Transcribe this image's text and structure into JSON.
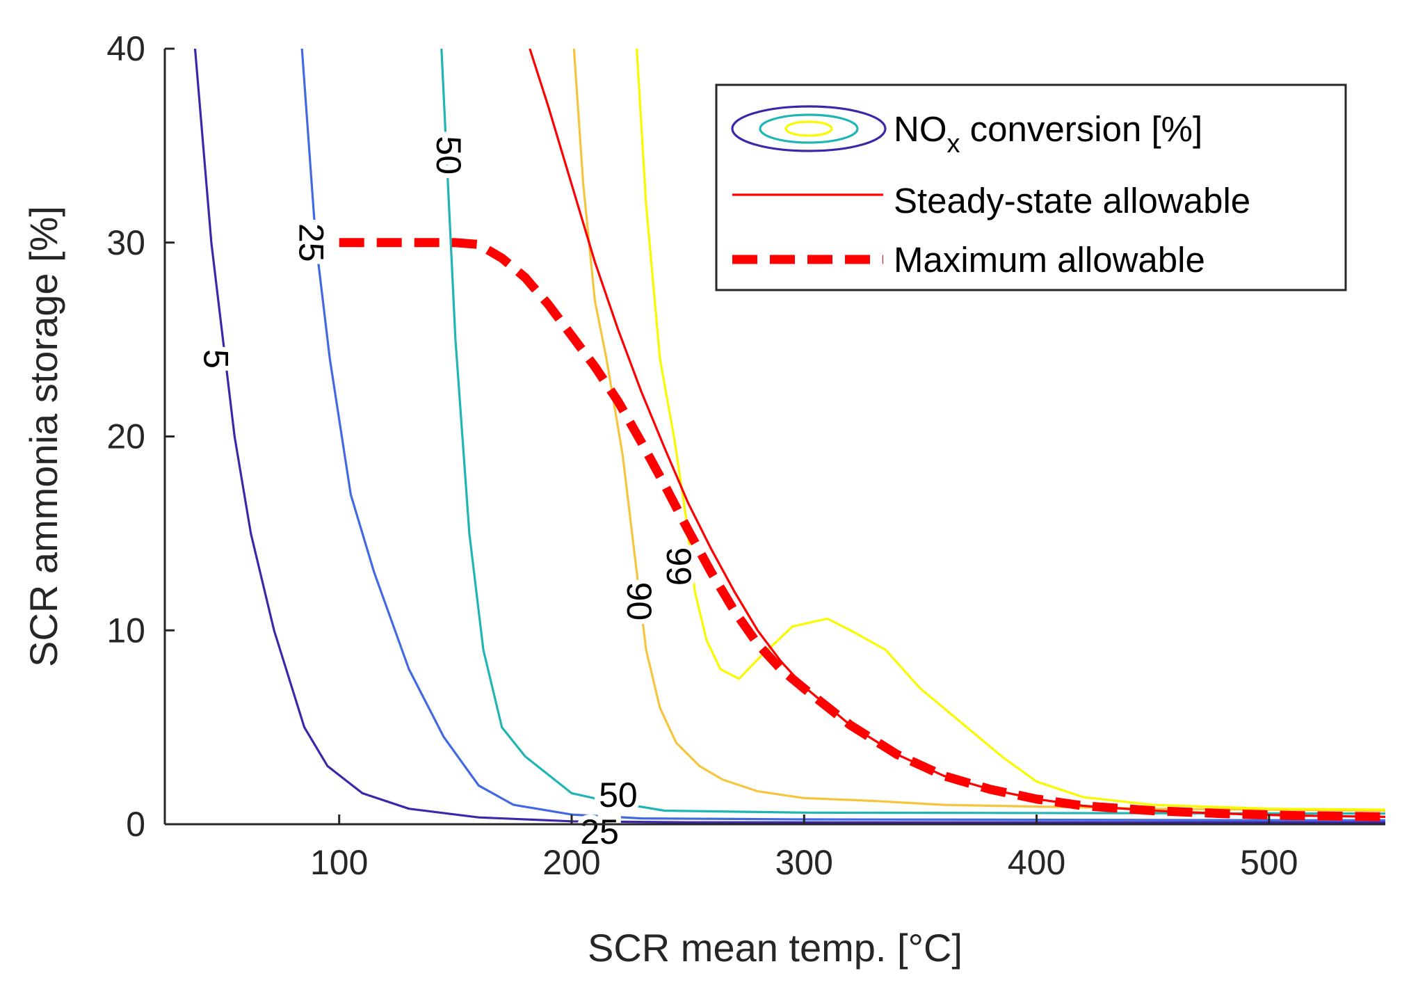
{
  "chart_data": {
    "type": "line",
    "xlabel": "SCR mean temp. [°C]",
    "ylabel": "SCR ammonia storage [%]",
    "xlim": [
      25,
      550
    ],
    "ylim": [
      0,
      40
    ],
    "x_ticks": [
      100,
      200,
      300,
      400,
      500
    ],
    "y_ticks": [
      0,
      10,
      20,
      30,
      40
    ],
    "grid": false,
    "legend_position": "top-right",
    "legend": [
      {
        "label": "NO",
        "sub": "x",
        "suffix": " conversion [%]",
        "kind": "contour-swatch"
      },
      {
        "label": "Steady-state allowable",
        "kind": "thin-line",
        "color": "#ff0000"
      },
      {
        "label": "Maximum allowable",
        "kind": "thick-dashed",
        "color": "#ff0000"
      }
    ],
    "contours": [
      {
        "level": 5,
        "color": "#3d26a8",
        "points": [
          [
            38,
            40
          ],
          [
            45,
            30
          ],
          [
            55,
            20
          ],
          [
            62,
            15
          ],
          [
            72,
            10
          ],
          [
            85,
            5
          ],
          [
            95,
            3
          ],
          [
            110,
            1.6
          ],
          [
            130,
            0.8
          ],
          [
            160,
            0.35
          ],
          [
            200,
            0.15
          ],
          [
            250,
            0.1
          ],
          [
            550,
            0.1
          ]
        ],
        "labels": [
          {
            "text": "5",
            "x": 47,
            "y": 24,
            "rotate": 90
          }
        ]
      },
      {
        "level": 25,
        "color": "#4169e1",
        "points": [
          [
            84,
            40
          ],
          [
            90,
            30
          ],
          [
            96,
            24
          ],
          [
            105,
            17
          ],
          [
            115,
            13
          ],
          [
            130,
            8
          ],
          [
            145,
            4.5
          ],
          [
            160,
            2
          ],
          [
            175,
            1
          ],
          [
            200,
            0.5
          ],
          [
            230,
            0.3
          ],
          [
            300,
            0.25
          ],
          [
            550,
            0.2
          ]
        ],
        "labels": [
          {
            "text": "25",
            "x": 88,
            "y": 30,
            "rotate": 90
          },
          {
            "text": "25",
            "x": 212,
            "y": -0.4,
            "rotate": 0
          }
        ]
      },
      {
        "level": 50,
        "color": "#1fb5b5",
        "points": [
          [
            144,
            40
          ],
          [
            146,
            35
          ],
          [
            148,
            30
          ],
          [
            150,
            25
          ],
          [
            153,
            20
          ],
          [
            156,
            15
          ],
          [
            162,
            9
          ],
          [
            170,
            5
          ],
          [
            180,
            3.5
          ],
          [
            200,
            1.6
          ],
          [
            215,
            1.2
          ],
          [
            240,
            0.7
          ],
          [
            300,
            0.6
          ],
          [
            550,
            0.55
          ]
        ],
        "labels": [
          {
            "text": "50",
            "x": 147,
            "y": 34.5,
            "rotate": 90
          },
          {
            "text": "50",
            "x": 220,
            "y": 1.5,
            "rotate": 0
          }
        ]
      },
      {
        "level": 90,
        "color": "#f7c53d",
        "points": [
          [
            201,
            40
          ],
          [
            205,
            33
          ],
          [
            210,
            27
          ],
          [
            215,
            24
          ],
          [
            222,
            19
          ],
          [
            228,
            13
          ],
          [
            232,
            9
          ],
          [
            238,
            6
          ],
          [
            245,
            4.2
          ],
          [
            255,
            3
          ],
          [
            265,
            2.3
          ],
          [
            280,
            1.7
          ],
          [
            300,
            1.35
          ],
          [
            330,
            1.2
          ],
          [
            360,
            1.0
          ],
          [
            450,
            0.8
          ],
          [
            550,
            0.7
          ]
        ],
        "labels": [
          {
            "text": "90",
            "x": 229,
            "y": 11.5,
            "rotate": 90
          }
        ]
      },
      {
        "level": 99,
        "color": "#f9f900",
        "points": [
          [
            228,
            40
          ],
          [
            232,
            32
          ],
          [
            238,
            24
          ],
          [
            244,
            20
          ],
          [
            249,
            16
          ],
          [
            253,
            12
          ],
          [
            258,
            9.5
          ],
          [
            264,
            8
          ],
          [
            272,
            7.5
          ],
          [
            280,
            8.5
          ],
          [
            295,
            10.2
          ],
          [
            310,
            10.6
          ],
          [
            320,
            10
          ],
          [
            335,
            9
          ],
          [
            350,
            7
          ],
          [
            370,
            5
          ],
          [
            385,
            3.5
          ],
          [
            400,
            2.2
          ],
          [
            420,
            1.4
          ],
          [
            450,
            1.0
          ],
          [
            500,
            0.8
          ],
          [
            550,
            0.75
          ]
        ],
        "labels": [
          {
            "text": "99",
            "x": 246,
            "y": 13.3,
            "rotate": 90
          }
        ]
      }
    ],
    "series": [
      {
        "name": "Steady-state allowable",
        "style": "thin",
        "x": [
          182,
          190,
          200,
          210,
          220,
          230,
          240,
          250,
          260,
          270,
          280,
          290,
          300,
          320,
          340,
          360,
          380,
          400,
          420,
          450,
          480,
          510,
          550
        ],
        "y": [
          40,
          37,
          33,
          29,
          25.5,
          22.3,
          19.4,
          16.6,
          14.2,
          12,
          10,
          8.4,
          7.1,
          5.1,
          3.6,
          2.5,
          1.8,
          1.3,
          0.95,
          0.7,
          0.55,
          0.45,
          0.38
        ]
      },
      {
        "name": "Maximum allowable",
        "style": "thick-dashed",
        "x": [
          100,
          120,
          140,
          150,
          160,
          170,
          180,
          190,
          200,
          210,
          220,
          230,
          240,
          250,
          260,
          270,
          280,
          290,
          300,
          320,
          340,
          360,
          380,
          400,
          420,
          450,
          480,
          510,
          550
        ],
        "y": [
          30,
          30,
          30,
          30,
          29.9,
          29.2,
          28.2,
          26.8,
          25.2,
          23.6,
          21.8,
          19.7,
          17.5,
          15.2,
          13,
          11,
          9.3,
          8,
          7,
          5.1,
          3.6,
          2.5,
          1.8,
          1.3,
          0.95,
          0.7,
          0.55,
          0.45,
          0.38
        ]
      }
    ]
  }
}
